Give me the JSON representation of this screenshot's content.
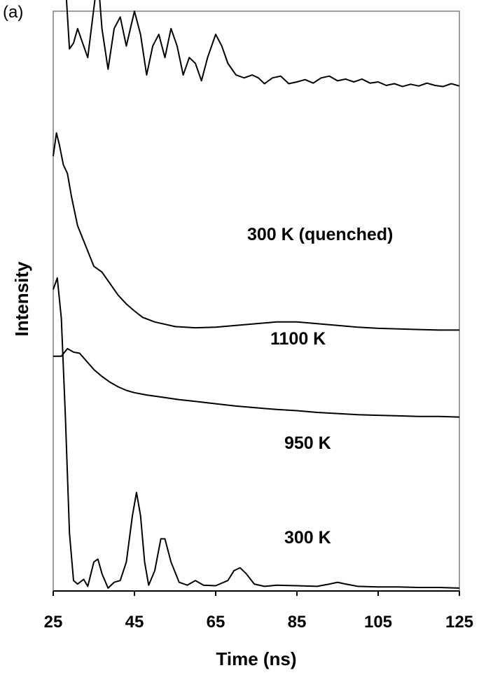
{
  "panel_label": "(a)",
  "chart_data": {
    "type": "line",
    "xlabel": "Time (ns)",
    "ylabel": "Intensity",
    "xlim": [
      25,
      125
    ],
    "xticks": [
      25,
      45,
      65,
      85,
      105,
      125
    ],
    "y_tick_labels": "none",
    "grid": false,
    "legend": "none (series labelled directly on the plot)",
    "note": "Traces are vertically offset; intensity in arbitrary units, values approximate",
    "series": [
      {
        "name": "300 K (quenched)",
        "offset": 0.5,
        "points": [
          [
            25.5,
            1.05
          ],
          [
            26.2,
            0.97
          ],
          [
            27,
            0.75
          ],
          [
            28,
            0.55
          ],
          [
            29,
            0.435
          ],
          [
            30,
            0.445
          ],
          [
            31,
            0.47
          ],
          [
            32,
            0.45
          ],
          [
            33.5,
            0.42
          ],
          [
            35,
            0.505
          ],
          [
            36,
            0.56
          ],
          [
            37,
            0.47
          ],
          [
            38.5,
            0.4
          ],
          [
            40,
            0.47
          ],
          [
            41.5,
            0.49
          ],
          [
            43,
            0.44
          ],
          [
            45,
            0.5
          ],
          [
            46.5,
            0.46
          ],
          [
            48,
            0.39
          ],
          [
            49.5,
            0.44
          ],
          [
            51,
            0.46
          ],
          [
            52.5,
            0.42
          ],
          [
            54,
            0.47
          ],
          [
            55.5,
            0.44
          ],
          [
            57,
            0.39
          ],
          [
            58.5,
            0.42
          ],
          [
            60,
            0.41
          ],
          [
            61.5,
            0.38
          ],
          [
            63,
            0.42
          ],
          [
            65,
            0.46
          ],
          [
            66.5,
            0.44
          ],
          [
            68,
            0.41
          ],
          [
            70,
            0.39
          ],
          [
            72,
            0.385
          ],
          [
            74,
            0.39
          ],
          [
            75.5,
            0.385
          ],
          [
            77,
            0.375
          ],
          [
            79,
            0.385
          ],
          [
            81,
            0.388
          ],
          [
            83,
            0.375
          ],
          [
            85,
            0.378
          ],
          [
            87,
            0.382
          ],
          [
            89,
            0.376
          ],
          [
            91,
            0.385
          ],
          [
            93,
            0.388
          ],
          [
            95,
            0.38
          ],
          [
            97,
            0.383
          ],
          [
            99,
            0.378
          ],
          [
            101,
            0.383
          ],
          [
            103,
            0.376
          ],
          [
            105,
            0.378
          ],
          [
            107,
            0.372
          ],
          [
            109,
            0.375
          ],
          [
            111,
            0.37
          ],
          [
            113,
            0.374
          ],
          [
            115,
            0.371
          ],
          [
            117,
            0.376
          ],
          [
            119,
            0.372
          ],
          [
            121,
            0.37
          ],
          [
            123,
            0.375
          ],
          [
            125,
            0.371
          ]
        ]
      },
      {
        "name": "1100 K",
        "offset": 0.25,
        "points": [
          [
            25,
            0.5
          ],
          [
            25.8,
            0.54
          ],
          [
            26.5,
            0.52
          ],
          [
            27.5,
            0.485
          ],
          [
            28.5,
            0.47
          ],
          [
            29.5,
            0.43
          ],
          [
            31,
            0.38
          ],
          [
            33,
            0.345
          ],
          [
            35,
            0.31
          ],
          [
            37,
            0.3
          ],
          [
            39,
            0.28
          ],
          [
            41,
            0.26
          ],
          [
            43,
            0.245
          ],
          [
            45,
            0.233
          ],
          [
            47,
            0.222
          ],
          [
            50,
            0.214
          ],
          [
            55,
            0.206
          ],
          [
            60,
            0.204
          ],
          [
            65,
            0.205
          ],
          [
            70,
            0.208
          ],
          [
            75,
            0.211
          ],
          [
            80,
            0.214
          ],
          [
            85,
            0.214
          ],
          [
            90,
            0.211
          ],
          [
            95,
            0.208
          ],
          [
            100,
            0.205
          ],
          [
            105,
            0.203
          ],
          [
            110,
            0.202
          ],
          [
            115,
            0.201
          ],
          [
            120,
            0.2
          ],
          [
            125,
            0.2
          ]
        ]
      },
      {
        "name": "950 K",
        "offset": 0.12,
        "points": [
          [
            25,
            0.285
          ],
          [
            27,
            0.285
          ],
          [
            28.5,
            0.298
          ],
          [
            30,
            0.292
          ],
          [
            31.5,
            0.29
          ],
          [
            33,
            0.278
          ],
          [
            35,
            0.262
          ],
          [
            37,
            0.25
          ],
          [
            39,
            0.24
          ],
          [
            41,
            0.232
          ],
          [
            43,
            0.226
          ],
          [
            45,
            0.222
          ],
          [
            48,
            0.218
          ],
          [
            52,
            0.214
          ],
          [
            56,
            0.21
          ],
          [
            60,
            0.207
          ],
          [
            65,
            0.203
          ],
          [
            70,
            0.199
          ],
          [
            75,
            0.196
          ],
          [
            80,
            0.193
          ],
          [
            85,
            0.191
          ],
          [
            90,
            0.188
          ],
          [
            95,
            0.186
          ],
          [
            100,
            0.184
          ],
          [
            105,
            0.183
          ],
          [
            110,
            0.182
          ],
          [
            115,
            0.181
          ],
          [
            120,
            0.181
          ],
          [
            125,
            0.18
          ]
        ]
      },
      {
        "name": "300 K",
        "offset": 0.0,
        "points": [
          [
            25,
            0.52
          ],
          [
            26,
            0.54
          ],
          [
            27,
            0.47
          ],
          [
            28,
            0.3
          ],
          [
            29,
            0.1
          ],
          [
            30,
            0.018
          ],
          [
            31,
            0.012
          ],
          [
            32.5,
            0.02
          ],
          [
            33.5,
            0.008
          ],
          [
            35,
            0.05
          ],
          [
            36,
            0.055
          ],
          [
            37,
            0.03
          ],
          [
            38.5,
            0.005
          ],
          [
            40,
            0.015
          ],
          [
            41.5,
            0.018
          ],
          [
            43,
            0.05
          ],
          [
            44.5,
            0.13
          ],
          [
            45.5,
            0.17
          ],
          [
            46.5,
            0.13
          ],
          [
            47.5,
            0.05
          ],
          [
            48.5,
            0.01
          ],
          [
            50,
            0.035
          ],
          [
            51.5,
            0.09
          ],
          [
            52.5,
            0.09
          ],
          [
            54,
            0.05
          ],
          [
            56,
            0.015
          ],
          [
            58,
            0.01
          ],
          [
            60,
            0.018
          ],
          [
            62,
            0.01
          ],
          [
            65,
            0.009
          ],
          [
            68,
            0.018
          ],
          [
            69.5,
            0.035
          ],
          [
            71,
            0.04
          ],
          [
            72.5,
            0.03
          ],
          [
            74.5,
            0.012
          ],
          [
            77,
            0.008
          ],
          [
            80,
            0.01
          ],
          [
            85,
            0.009
          ],
          [
            90,
            0.008
          ],
          [
            93,
            0.012
          ],
          [
            95,
            0.015
          ],
          [
            97,
            0.012
          ],
          [
            100,
            0.008
          ],
          [
            105,
            0.007
          ],
          [
            110,
            0.007
          ],
          [
            115,
            0.006
          ],
          [
            120,
            0.006
          ],
          [
            125,
            0.005
          ]
        ]
      }
    ]
  }
}
